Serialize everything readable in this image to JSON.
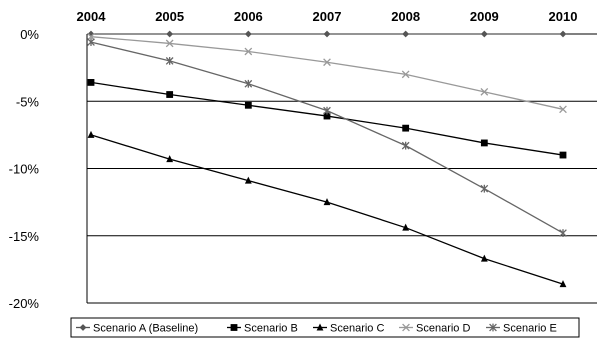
{
  "chart_data": {
    "type": "line",
    "title": "",
    "xlabel": "",
    "ylabel": "",
    "x": [
      "2004",
      "2005",
      "2006",
      "2007",
      "2008",
      "2009",
      "2010"
    ],
    "ylim": [
      -20,
      0
    ],
    "y_ticks": [
      0,
      -5,
      -10,
      -15,
      -20
    ],
    "y_tick_labels": [
      "0%",
      "-5%",
      "-10%",
      "-15%",
      "-20%"
    ],
    "x_axis_position": "top",
    "grid": "horizontal",
    "legend_position": "bottom",
    "series": [
      {
        "name": "Scenario A (Baseline)",
        "marker": "diamond",
        "color": "#555555",
        "values": [
          0,
          0,
          0,
          0,
          0,
          0,
          0
        ]
      },
      {
        "name": "Scenario B",
        "marker": "square",
        "color": "#000000",
        "values": [
          -3.6,
          -4.5,
          -5.3,
          -6.1,
          -7.0,
          -8.1,
          -9.0
        ]
      },
      {
        "name": "Scenario C",
        "marker": "triangle",
        "color": "#000000",
        "values": [
          -7.5,
          -9.3,
          -10.9,
          -12.5,
          -14.4,
          -16.7,
          -18.6
        ]
      },
      {
        "name": "Scenario D",
        "marker": "x",
        "color": "#999999",
        "values": [
          -0.2,
          -0.7,
          -1.3,
          -2.1,
          -3.0,
          -4.3,
          -5.6
        ]
      },
      {
        "name": "Scenario E",
        "marker": "star",
        "color": "#666666",
        "values": [
          -0.6,
          -2.0,
          -3.7,
          -5.7,
          -8.3,
          -11.5,
          -14.8
        ]
      }
    ]
  }
}
